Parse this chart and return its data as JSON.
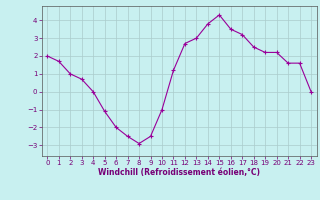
{
  "x": [
    0,
    1,
    2,
    3,
    4,
    5,
    6,
    7,
    8,
    9,
    10,
    11,
    12,
    13,
    14,
    15,
    16,
    17,
    18,
    19,
    20,
    21,
    22,
    23
  ],
  "y": [
    2.0,
    1.7,
    1.0,
    0.7,
    0.0,
    -1.1,
    -2.0,
    -2.5,
    -2.9,
    -2.5,
    -1.0,
    1.2,
    2.7,
    3.0,
    3.8,
    4.3,
    3.5,
    3.2,
    2.5,
    2.2,
    2.2,
    1.6,
    1.6,
    0.0
  ],
  "line_color": "#990099",
  "marker": "+",
  "background_color": "#c8f0f0",
  "grid_color": "#aacccc",
  "xlabel": "Windchill (Refroidissement éolien,°C)",
  "xlabel_color": "#770077",
  "tick_color": "#770077",
  "axis_color": "#555555",
  "ylim": [
    -3.6,
    4.8
  ],
  "xlim": [
    -0.5,
    23.5
  ],
  "yticks": [
    -3,
    -2,
    -1,
    0,
    1,
    2,
    3,
    4
  ],
  "xticks": [
    0,
    1,
    2,
    3,
    4,
    5,
    6,
    7,
    8,
    9,
    10,
    11,
    12,
    13,
    14,
    15,
    16,
    17,
    18,
    19,
    20,
    21,
    22,
    23
  ],
  "tick_fontsize": 5.0,
  "xlabel_fontsize": 5.5,
  "linewidth": 0.8,
  "markersize": 3.0
}
